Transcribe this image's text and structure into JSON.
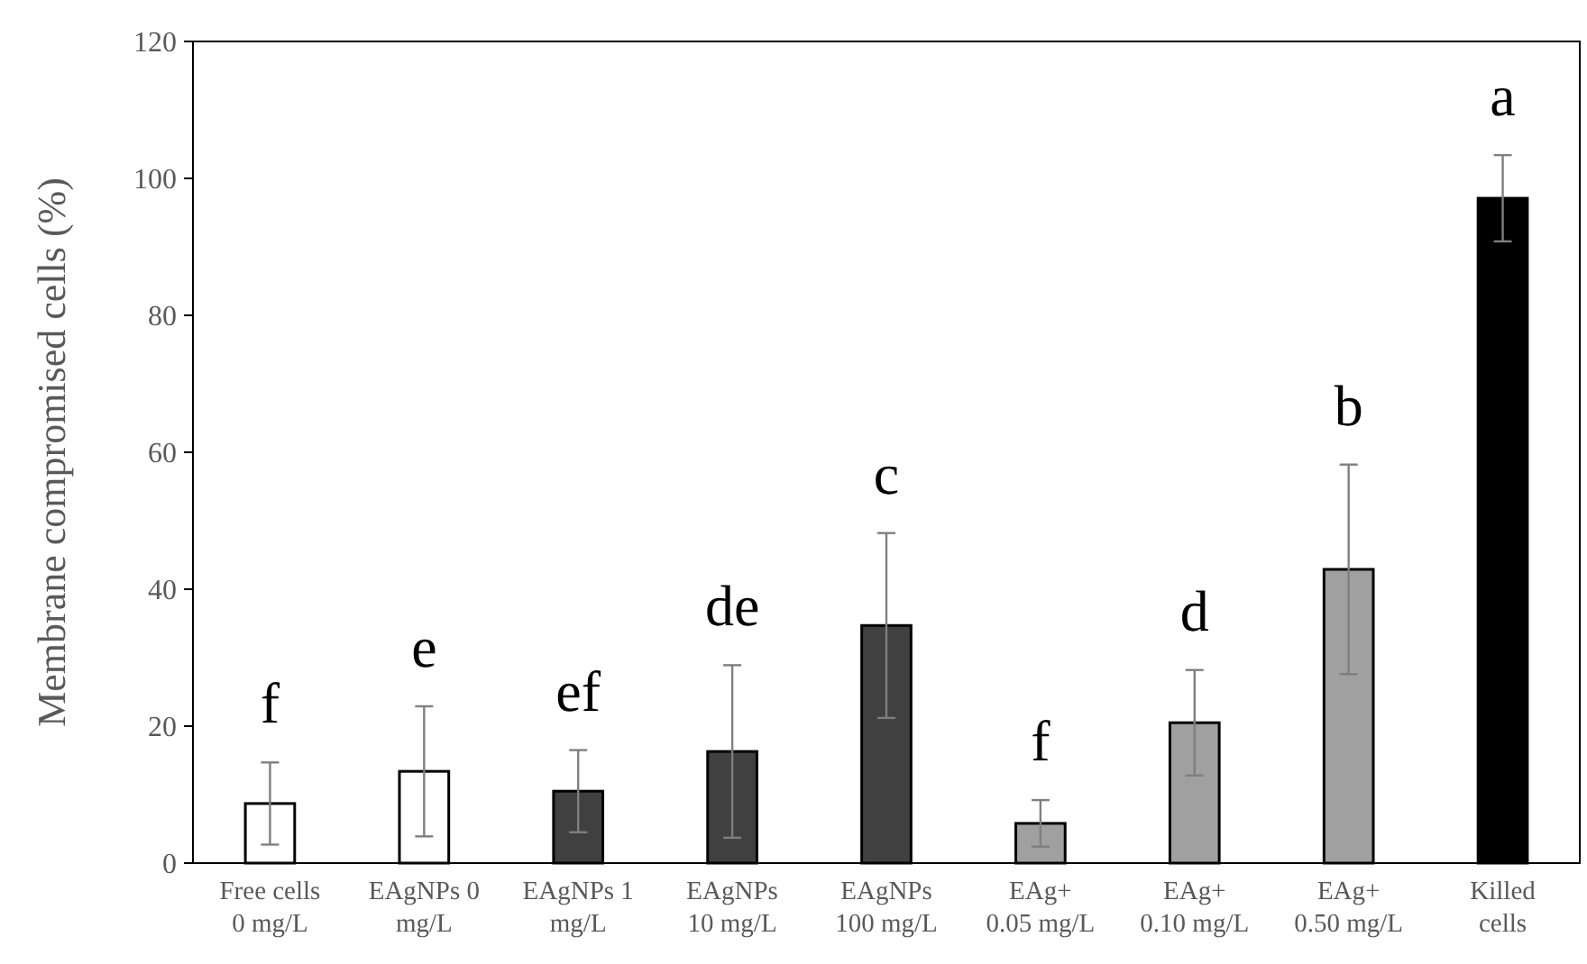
{
  "chart_data": {
    "type": "bar",
    "ylabel": "Membrane compromised cells (%)",
    "categories": [
      "Free cells\n0 mg/L",
      "EAgNPs 0\nmg/L",
      "EAgNPs 1\nmg/L",
      "EAgNPs\n10 mg/L",
      "EAgNPs\n100 mg/L",
      "EAg+\n0.05 mg/L",
      "EAg+\n0.10 mg/L",
      "EAg+\n0.50 mg/L",
      "Killed\ncells"
    ],
    "values": [
      8.7,
      13.4,
      10.5,
      16.3,
      34.7,
      5.8,
      20.5,
      42.9,
      97.1
    ],
    "errors": [
      6,
      9.5,
      6,
      12.6,
      13.5,
      3.4,
      7.7,
      15.3,
      6.3
    ],
    "colors": [
      "#ffffff",
      "#ffffff",
      "#404040",
      "#404040",
      "#404040",
      "#a0a0a0",
      "#a0a0a0",
      "#a0a0a0",
      "#000000"
    ],
    "ylim": [
      0,
      120
    ],
    "yticks": [
      0,
      20,
      40,
      60,
      80,
      100,
      120
    ],
    "grid": false,
    "annotations": [
      "f",
      "e",
      "ef",
      "de",
      "c",
      "f",
      "d",
      "b",
      "a"
    ]
  }
}
